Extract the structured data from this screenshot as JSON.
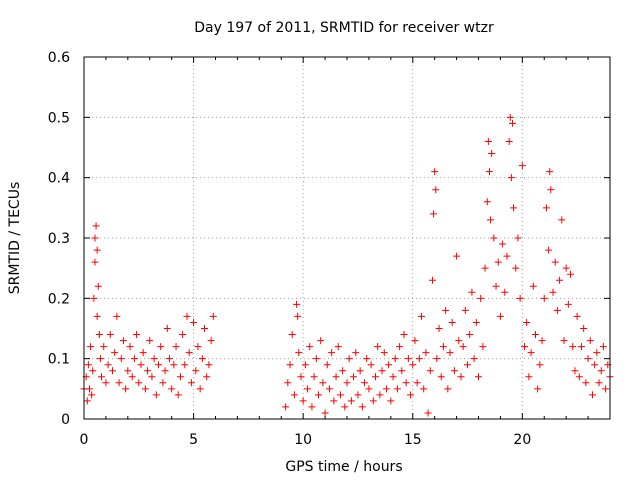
{
  "chart_data": {
    "type": "scatter",
    "title": "Day 197 of 2011, SRMTID for receiver wtzr",
    "xlabel": "GPS time / hours",
    "ylabel": "SRMTID / TECUs",
    "xlim": [
      0,
      24
    ],
    "ylim": [
      0,
      0.6
    ],
    "xticks": [
      0,
      5,
      10,
      15,
      20
    ],
    "xtick_labels": [
      "0",
      "5",
      "10",
      "15",
      "20"
    ],
    "yticks": [
      0,
      0.1,
      0.2,
      0.3,
      0.4,
      0.5,
      0.6
    ],
    "ytick_labels": [
      "0",
      "0.1",
      "0.2",
      "0.3",
      "0.4",
      "0.5",
      "0.6"
    ],
    "grid": true,
    "marker": "+",
    "color": "#ff0000",
    "series": [
      {
        "name": "SRMTID",
        "points": [
          [
            0.0,
            0.05
          ],
          [
            0.1,
            0.07
          ],
          [
            0.15,
            0.03
          ],
          [
            0.2,
            0.09
          ],
          [
            0.25,
            0.05
          ],
          [
            0.3,
            0.12
          ],
          [
            0.35,
            0.04
          ],
          [
            0.4,
            0.08
          ],
          [
            0.45,
            0.2
          ],
          [
            0.5,
            0.26
          ],
          [
            0.5,
            0.3
          ],
          [
            0.55,
            0.32
          ],
          [
            0.6,
            0.28
          ],
          [
            0.6,
            0.17
          ],
          [
            0.65,
            0.22
          ],
          [
            0.7,
            0.14
          ],
          [
            0.75,
            0.1
          ],
          [
            0.8,
            0.07
          ],
          [
            0.9,
            0.12
          ],
          [
            1.0,
            0.06
          ],
          [
            1.1,
            0.09
          ],
          [
            1.2,
            0.14
          ],
          [
            1.3,
            0.08
          ],
          [
            1.4,
            0.11
          ],
          [
            1.5,
            0.17
          ],
          [
            1.6,
            0.06
          ],
          [
            1.7,
            0.1
          ],
          [
            1.8,
            0.13
          ],
          [
            1.9,
            0.05
          ],
          [
            2.0,
            0.08
          ],
          [
            2.1,
            0.12
          ],
          [
            2.2,
            0.07
          ],
          [
            2.3,
            0.1
          ],
          [
            2.4,
            0.14
          ],
          [
            2.5,
            0.06
          ],
          [
            2.6,
            0.09
          ],
          [
            2.7,
            0.11
          ],
          [
            2.8,
            0.05
          ],
          [
            2.9,
            0.08
          ],
          [
            3.0,
            0.13
          ],
          [
            3.1,
            0.07
          ],
          [
            3.2,
            0.1
          ],
          [
            3.3,
            0.04
          ],
          [
            3.4,
            0.09
          ],
          [
            3.5,
            0.12
          ],
          [
            3.6,
            0.06
          ],
          [
            3.7,
            0.08
          ],
          [
            3.8,
            0.15
          ],
          [
            3.9,
            0.1
          ],
          [
            4.0,
            0.05
          ],
          [
            4.1,
            0.09
          ],
          [
            4.2,
            0.12
          ],
          [
            4.3,
            0.04
          ],
          [
            4.4,
            0.07
          ],
          [
            4.5,
            0.14
          ],
          [
            4.6,
            0.09
          ],
          [
            4.7,
            0.17
          ],
          [
            4.8,
            0.11
          ],
          [
            4.9,
            0.06
          ],
          [
            5.0,
            0.16
          ],
          [
            5.1,
            0.08
          ],
          [
            5.2,
            0.12
          ],
          [
            5.3,
            0.05
          ],
          [
            5.4,
            0.1
          ],
          [
            5.5,
            0.15
          ],
          [
            5.6,
            0.07
          ],
          [
            5.7,
            0.09
          ],
          [
            5.8,
            0.13
          ],
          [
            5.9,
            0.17
          ],
          [
            9.2,
            0.02
          ],
          [
            9.3,
            0.06
          ],
          [
            9.4,
            0.09
          ],
          [
            9.5,
            0.14
          ],
          [
            9.6,
            0.04
          ],
          [
            9.7,
            0.19
          ],
          [
            9.75,
            0.17
          ],
          [
            9.8,
            0.11
          ],
          [
            9.9,
            0.07
          ],
          [
            10.0,
            0.03
          ],
          [
            10.1,
            0.09
          ],
          [
            10.2,
            0.05
          ],
          [
            10.3,
            0.12
          ],
          [
            10.4,
            0.02
          ],
          [
            10.5,
            0.07
          ],
          [
            10.6,
            0.1
          ],
          [
            10.7,
            0.04
          ],
          [
            10.8,
            0.13
          ],
          [
            10.9,
            0.06
          ],
          [
            11.0,
            0.01
          ],
          [
            11.1,
            0.09
          ],
          [
            11.2,
            0.05
          ],
          [
            11.3,
            0.11
          ],
          [
            11.4,
            0.03
          ],
          [
            11.5,
            0.07
          ],
          [
            11.6,
            0.12
          ],
          [
            11.7,
            0.04
          ],
          [
            11.8,
            0.08
          ],
          [
            11.9,
            0.02
          ],
          [
            12.0,
            0.06
          ],
          [
            12.1,
            0.1
          ],
          [
            12.2,
            0.03
          ],
          [
            12.3,
            0.07
          ],
          [
            12.4,
            0.11
          ],
          [
            12.5,
            0.04
          ],
          [
            12.6,
            0.08
          ],
          [
            12.7,
            0.02
          ],
          [
            12.8,
            0.06
          ],
          [
            12.9,
            0.1
          ],
          [
            13.0,
            0.05
          ],
          [
            13.1,
            0.09
          ],
          [
            13.2,
            0.03
          ],
          [
            13.3,
            0.07
          ],
          [
            13.4,
            0.12
          ],
          [
            13.5,
            0.04
          ],
          [
            13.6,
            0.08
          ],
          [
            13.7,
            0.11
          ],
          [
            13.8,
            0.05
          ],
          [
            13.9,
            0.09
          ],
          [
            14.0,
            0.03
          ],
          [
            14.1,
            0.07
          ],
          [
            14.2,
            0.1
          ],
          [
            14.3,
            0.05
          ],
          [
            14.4,
            0.12
          ],
          [
            14.5,
            0.08
          ],
          [
            14.6,
            0.14
          ],
          [
            14.7,
            0.06
          ],
          [
            14.8,
            0.1
          ],
          [
            14.9,
            0.04
          ],
          [
            15.0,
            0.09
          ],
          [
            15.1,
            0.13
          ],
          [
            15.2,
            0.06
          ],
          [
            15.3,
            0.1
          ],
          [
            15.4,
            0.17
          ],
          [
            15.5,
            0.05
          ],
          [
            15.6,
            0.11
          ],
          [
            15.7,
            0.01
          ],
          [
            15.8,
            0.08
          ],
          [
            15.9,
            0.23
          ],
          [
            15.95,
            0.34
          ],
          [
            16.0,
            0.41
          ],
          [
            16.05,
            0.38
          ],
          [
            16.1,
            0.1
          ],
          [
            16.2,
            0.15
          ],
          [
            16.3,
            0.07
          ],
          [
            16.4,
            0.12
          ],
          [
            16.5,
            0.18
          ],
          [
            16.6,
            0.05
          ],
          [
            16.7,
            0.11
          ],
          [
            16.8,
            0.16
          ],
          [
            16.9,
            0.08
          ],
          [
            17.0,
            0.27
          ],
          [
            17.1,
            0.13
          ],
          [
            17.2,
            0.07
          ],
          [
            17.3,
            0.12
          ],
          [
            17.4,
            0.18
          ],
          [
            17.5,
            0.09
          ],
          [
            17.6,
            0.14
          ],
          [
            17.7,
            0.21
          ],
          [
            17.8,
            0.1
          ],
          [
            17.9,
            0.16
          ],
          [
            18.0,
            0.07
          ],
          [
            18.1,
            0.2
          ],
          [
            18.2,
            0.12
          ],
          [
            18.3,
            0.25
          ],
          [
            18.4,
            0.36
          ],
          [
            18.45,
            0.46
          ],
          [
            18.5,
            0.41
          ],
          [
            18.55,
            0.33
          ],
          [
            18.6,
            0.44
          ],
          [
            18.7,
            0.3
          ],
          [
            18.8,
            0.22
          ],
          [
            18.9,
            0.26
          ],
          [
            19.0,
            0.17
          ],
          [
            19.1,
            0.29
          ],
          [
            19.2,
            0.21
          ],
          [
            19.3,
            0.27
          ],
          [
            19.4,
            0.46
          ],
          [
            19.45,
            0.5
          ],
          [
            19.5,
            0.4
          ],
          [
            19.55,
            0.49
          ],
          [
            19.6,
            0.35
          ],
          [
            19.7,
            0.25
          ],
          [
            19.8,
            0.3
          ],
          [
            19.9,
            0.2
          ],
          [
            20.0,
            0.42
          ],
          [
            20.1,
            0.12
          ],
          [
            20.2,
            0.16
          ],
          [
            20.3,
            0.07
          ],
          [
            20.4,
            0.11
          ],
          [
            20.5,
            0.22
          ],
          [
            20.6,
            0.14
          ],
          [
            20.7,
            0.05
          ],
          [
            20.8,
            0.09
          ],
          [
            20.9,
            0.13
          ],
          [
            21.0,
            0.2
          ],
          [
            21.1,
            0.35
          ],
          [
            21.2,
            0.28
          ],
          [
            21.25,
            0.41
          ],
          [
            21.3,
            0.38
          ],
          [
            21.4,
            0.21
          ],
          [
            21.5,
            0.26
          ],
          [
            21.6,
            0.18
          ],
          [
            21.7,
            0.23
          ],
          [
            21.8,
            0.33
          ],
          [
            21.9,
            0.13
          ],
          [
            22.0,
            0.25
          ],
          [
            22.1,
            0.19
          ],
          [
            22.2,
            0.24
          ],
          [
            22.3,
            0.12
          ],
          [
            22.4,
            0.08
          ],
          [
            22.5,
            0.17
          ],
          [
            22.6,
            0.07
          ],
          [
            22.7,
            0.12
          ],
          [
            22.8,
            0.15
          ],
          [
            22.9,
            0.06
          ],
          [
            23.0,
            0.1
          ],
          [
            23.1,
            0.13
          ],
          [
            23.2,
            0.04
          ],
          [
            23.3,
            0.09
          ],
          [
            23.4,
            0.11
          ],
          [
            23.5,
            0.06
          ],
          [
            23.6,
            0.08
          ],
          [
            23.7,
            0.12
          ],
          [
            23.8,
            0.05
          ],
          [
            23.9,
            0.09
          ],
          [
            24.0,
            0.07
          ]
        ]
      }
    ]
  }
}
